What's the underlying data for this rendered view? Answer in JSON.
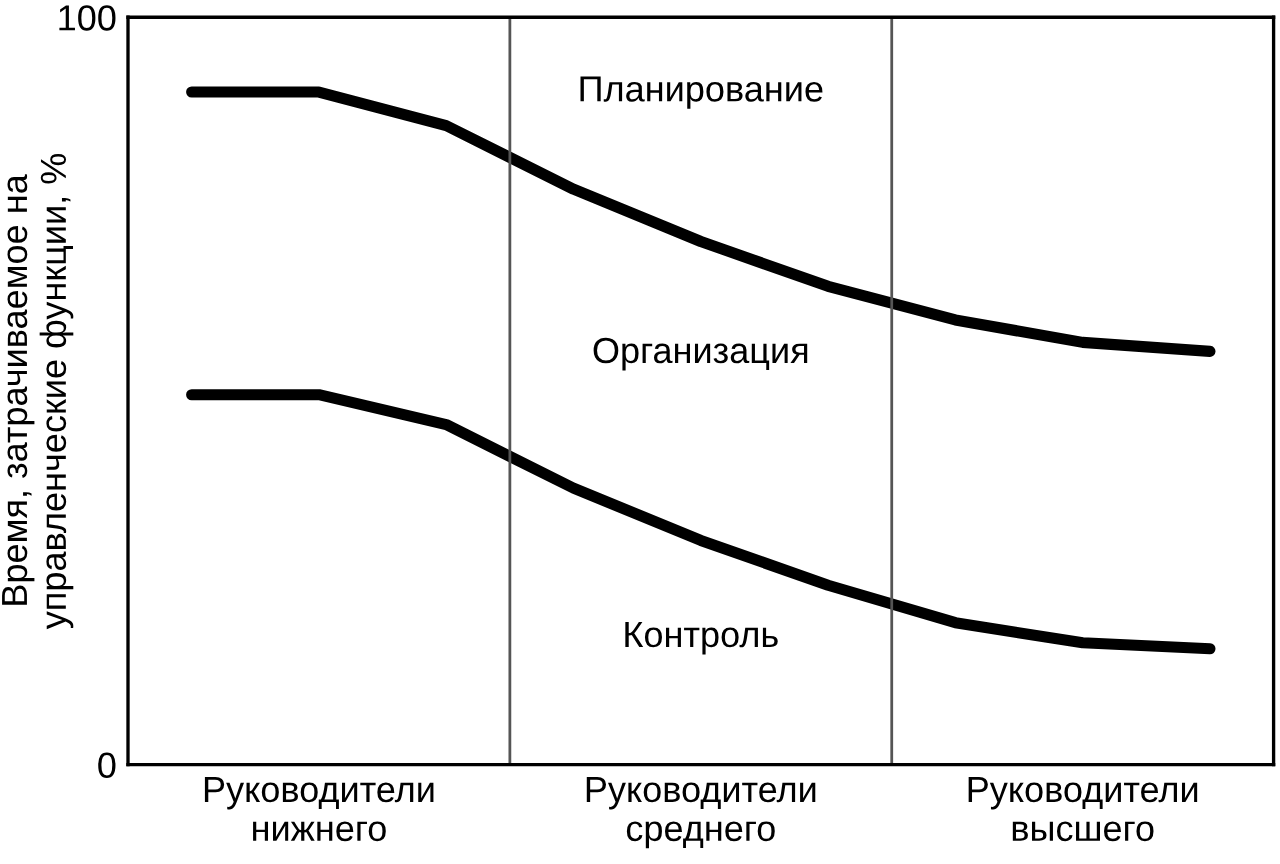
{
  "chart_data": {
    "type": "line",
    "ylabel": "Время, затрачиваемое на\nуправленческие функции, %",
    "categories": [
      null,
      "Руководители\nнижнего",
      null,
      null,
      "Руководители\nсреднего",
      null,
      null,
      "Руководители\nвысшего",
      null
    ],
    "series": [
      {
        "color": "#000000",
        "values": [
          90,
          90,
          85.5,
          77,
          70,
          64,
          59.5,
          56.5,
          55.3
        ]
      },
      {
        "color": "#000000",
        "values": [
          49.5,
          49.5,
          45.5,
          37,
          30,
          24,
          19,
          16.3,
          15.5
        ]
      }
    ],
    "ylim": [
      0,
      100
    ],
    "yticks": [
      0,
      100
    ],
    "annotations": [
      "Планирование",
      "Организация",
      "Контроль"
    ],
    "grid": false,
    "legend": false,
    "marker": "none",
    "line_style": "solid"
  }
}
